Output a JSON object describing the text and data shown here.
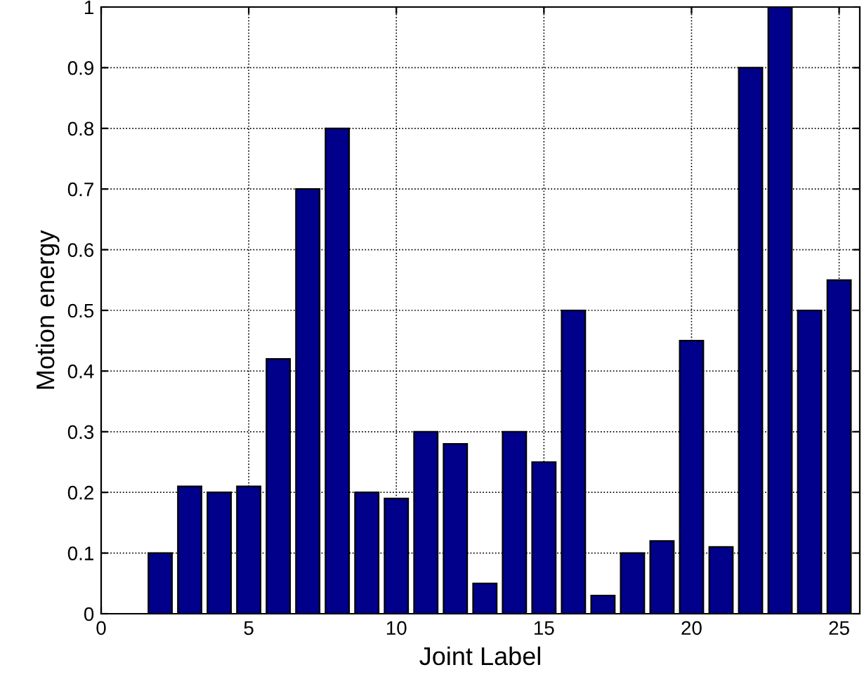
{
  "chart_data": {
    "type": "bar",
    "xlabel": "Joint Label",
    "ylabel": "Motion energy",
    "x": [
      2,
      3,
      4,
      5,
      6,
      7,
      8,
      9,
      10,
      11,
      12,
      13,
      14,
      15,
      16,
      17,
      18,
      19,
      20,
      21,
      22,
      23,
      24,
      25
    ],
    "values": [
      0.1,
      0.21,
      0.2,
      0.21,
      0.42,
      0.7,
      0.8,
      0.2,
      0.19,
      0.3,
      0.28,
      0.05,
      0.3,
      0.25,
      0.5,
      0.03,
      0.1,
      0.12,
      0.45,
      0.11,
      0.9,
      1.0,
      0.5,
      0.55
    ],
    "color": "#00008b",
    "xlim": [
      0,
      25.7
    ],
    "xticks": [
      0,
      5,
      10,
      15,
      20,
      25
    ],
    "ylim": [
      0,
      1
    ],
    "yticks": [
      0,
      0.1,
      0.2,
      0.3,
      0.4,
      0.5,
      0.6,
      0.7,
      0.8,
      0.9,
      1
    ],
    "grid": true
  }
}
